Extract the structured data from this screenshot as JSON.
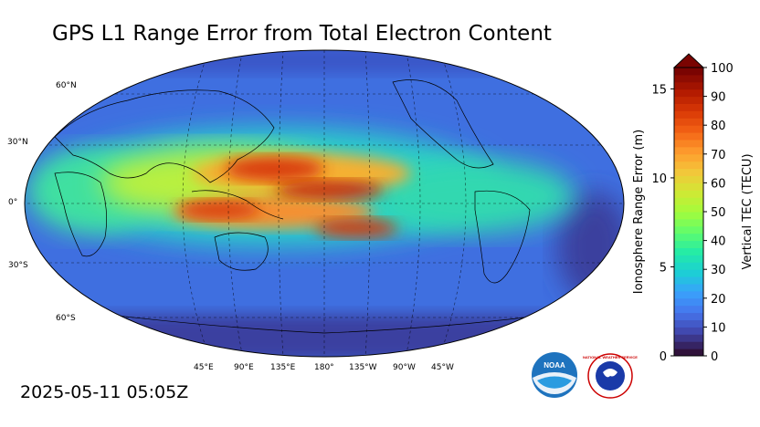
{
  "title": "GPS L1 Range Error from Total Electron Content",
  "timestamp": "2025-05-11 05:05Z",
  "map": {
    "lat_labels": [
      "60°N",
      "30°N",
      "0°",
      "30°S",
      "60°S"
    ],
    "lon_labels": [
      "45°E",
      "90°E",
      "135°E",
      "180°",
      "135°W",
      "90°W",
      "45°W"
    ]
  },
  "colorbar": {
    "left_axis_label": "Ionosphere Range Error (m)",
    "right_axis_label": "Vertical TEC (TECU)",
    "left_ticks": [
      "0",
      "5",
      "10",
      "15"
    ],
    "right_ticks": [
      "0",
      "10",
      "20",
      "30",
      "40",
      "50",
      "60",
      "70",
      "80",
      "90",
      "100"
    ],
    "tec_range": [
      0,
      100
    ],
    "range_error_range": [
      0,
      16.2
    ],
    "extend": "max",
    "palette": [
      "#30123b",
      "#4145ab",
      "#4675ed",
      "#39a2fc",
      "#1bcfd4",
      "#24eca6",
      "#61fc6c",
      "#a4fc3b",
      "#d1e834",
      "#f3c63a",
      "#fe9b2d",
      "#f36315",
      "#d93806",
      "#b11901",
      "#7a0402"
    ]
  },
  "logos": [
    "NOAA",
    "NATIONAL WEATHER SERVICE"
  ]
}
